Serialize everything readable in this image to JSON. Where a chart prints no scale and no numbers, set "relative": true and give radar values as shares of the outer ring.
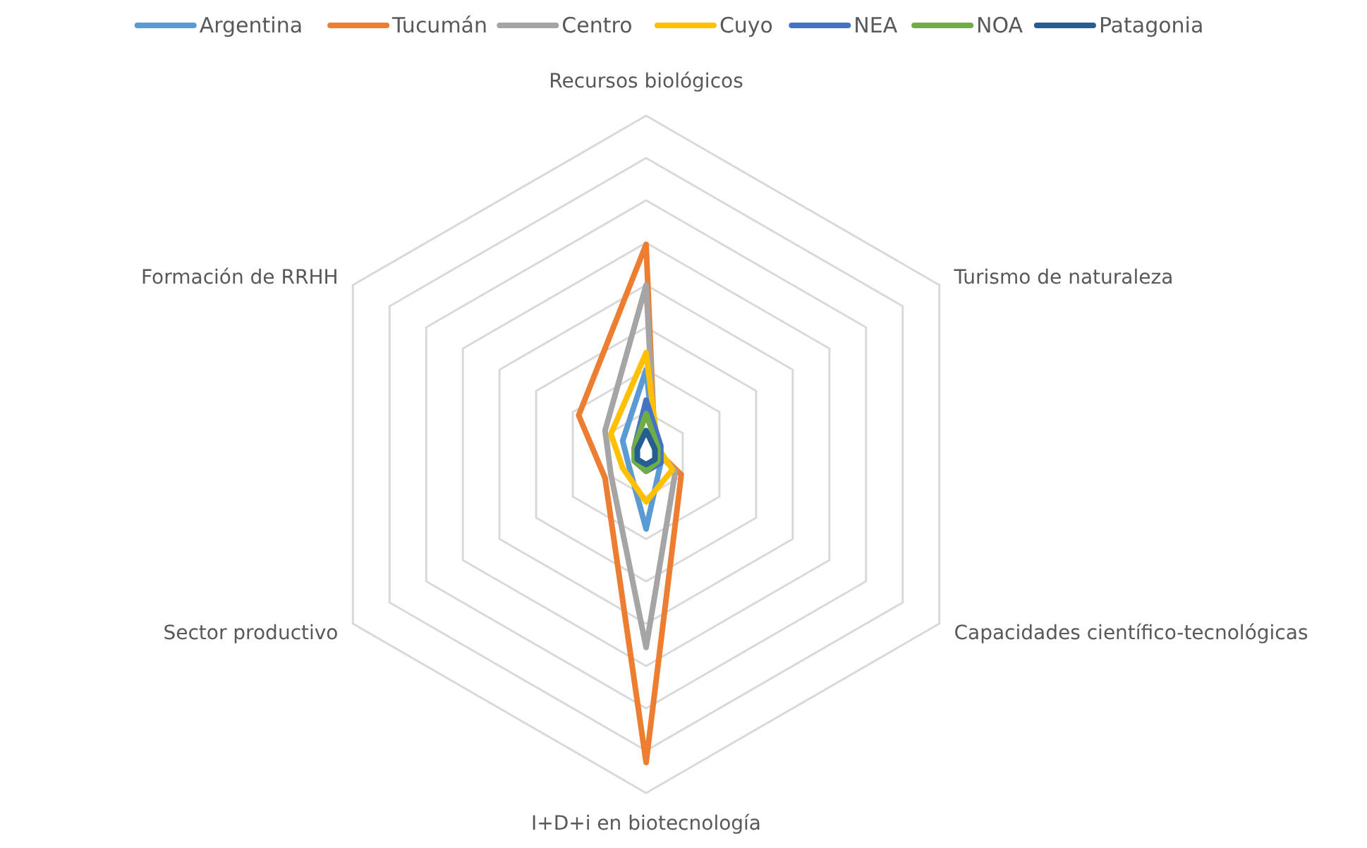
{
  "chart_data": {
    "type": "radar",
    "relative": true,
    "legend": "top",
    "grid": true,
    "categories": [
      "Recursos biológicos",
      "Turismo de naturaleza",
      "Capacidades científico-tecnológicas",
      "I+D+i en biotecnología",
      "Sector productivo",
      "Formación de RRHH"
    ],
    "series": [
      {
        "name": "Argentina",
        "color": "#5b9bd5",
        "values": [
          0.25,
          0.03,
          0.05,
          0.22,
          0.06,
          0.08
        ]
      },
      {
        "name": "Tucumán",
        "color": "#ed7d31",
        "values": [
          0.62,
          0.03,
          0.12,
          0.91,
          0.14,
          0.23
        ]
      },
      {
        "name": "Centro",
        "color": "#a5a5a5",
        "values": [
          0.5,
          0.03,
          0.1,
          0.57,
          0.12,
          0.14
        ]
      },
      {
        "name": "Cuyo",
        "color": "#ffc000",
        "values": [
          0.3,
          0.04,
          0.09,
          0.14,
          0.08,
          0.12
        ]
      },
      {
        "name": "NEA",
        "color": "#4472c4",
        "values": [
          0.16,
          0.05,
          0.05,
          0.05,
          0.04,
          0.04
        ]
      },
      {
        "name": "NOA",
        "color": "#70ad47",
        "values": [
          0.12,
          0.04,
          0.04,
          0.05,
          0.04,
          0.04
        ]
      },
      {
        "name": "Patagonia",
        "color": "#255e91",
        "values": [
          0.07,
          0.03,
          0.03,
          0.03,
          0.03,
          0.03
        ]
      }
    ]
  }
}
